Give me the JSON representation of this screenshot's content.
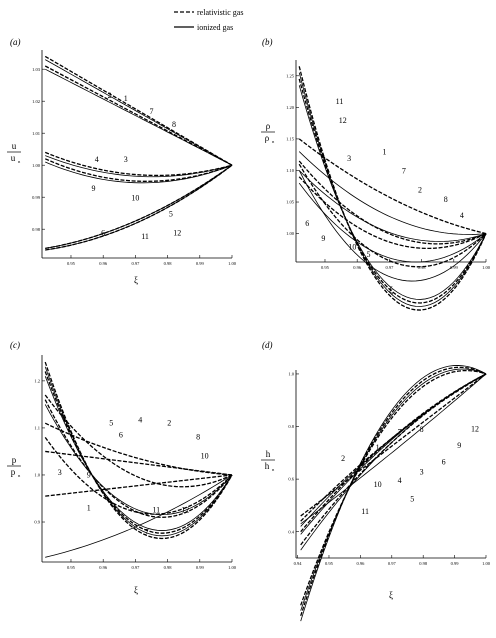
{
  "legend": {
    "dashed_label": "relativistic gas",
    "solid_label": "ionized gas",
    "dashed_style": "dashed",
    "solid_style": "solid"
  },
  "colors": {
    "line": "#000000",
    "background": "#ffffff"
  },
  "chart_data": [
    {
      "panel": "(a)",
      "type": "line",
      "xlabel": "ξ",
      "ylabel_num": "u",
      "ylabel_den": "u",
      "ylabel_sub": "n",
      "xlim": [
        0.941,
        1.0
      ],
      "ylim": [
        0.971,
        1.036
      ],
      "xticks": [
        0.95,
        0.96,
        0.97,
        0.98,
        0.99,
        1.0
      ],
      "xtick_labels": [
        "0.95",
        "0.96",
        "0.97",
        "0.98",
        "0.99",
        "1.00"
      ],
      "yticks": [
        0.98,
        0.99,
        1.0,
        1.01,
        1.02,
        1.03
      ],
      "ytick_labels": [
        "0.98",
        "0.99",
        "1.00",
        "1.01",
        "1.02",
        "1.03"
      ],
      "grid": false,
      "series": [
        {
          "name": "2",
          "style": "dashed",
          "x": [
            0.942,
            1.0
          ],
          "y": [
            1.034,
            1.0
          ],
          "bow": 0.0
        },
        {
          "name": "1",
          "style": "solid",
          "x": [
            0.942,
            1.0
          ],
          "y": [
            1.033,
            1.0
          ],
          "bow": 0.0
        },
        {
          "name": "7",
          "style": "dashed",
          "x": [
            0.942,
            1.0
          ],
          "y": [
            1.031,
            1.0
          ],
          "bow": 0.0
        },
        {
          "name": "8",
          "style": "solid",
          "x": [
            0.942,
            1.0
          ],
          "y": [
            1.03,
            1.0
          ],
          "bow": 0.0
        },
        {
          "name": "4",
          "style": "dashed",
          "x": [
            0.942,
            1.0
          ],
          "y": [
            1.004,
            1.0
          ],
          "bow": -0.005
        },
        {
          "name": "3",
          "style": "solid",
          "x": [
            0.942,
            1.0
          ],
          "y": [
            1.003,
            1.0
          ],
          "bow": -0.005
        },
        {
          "name": "9",
          "style": "dashed",
          "x": [
            0.942,
            1.0
          ],
          "y": [
            1.002,
            1.0
          ],
          "bow": -0.006
        },
        {
          "name": "10",
          "style": "solid",
          "x": [
            0.942,
            1.0
          ],
          "y": [
            1.001,
            1.0
          ],
          "bow": -0.006
        },
        {
          "name": "6",
          "style": "dashed",
          "x": [
            0.942,
            1.0
          ],
          "y": [
            0.974,
            1.0
          ],
          "bow": -0.004
        },
        {
          "name": "5",
          "style": "solid",
          "x": [
            0.942,
            1.0
          ],
          "y": [
            0.974,
            1.0
          ],
          "bow": -0.004
        },
        {
          "name": "11",
          "style": "dashed",
          "x": [
            0.942,
            1.0
          ],
          "y": [
            0.9735,
            1.0
          ],
          "bow": -0.0045
        },
        {
          "name": "12",
          "style": "solid",
          "x": [
            0.942,
            1.0
          ],
          "y": [
            0.9735,
            1.0
          ],
          "bow": -0.0045
        }
      ],
      "curve_labels": [
        {
          "text": "2",
          "x": 0.962,
          "y": 1.021
        },
        {
          "text": "1",
          "x": 0.967,
          "y": 1.02
        },
        {
          "text": "7",
          "x": 0.975,
          "y": 1.016
        },
        {
          "text": "8",
          "x": 0.982,
          "y": 1.012
        },
        {
          "text": "4",
          "x": 0.958,
          "y": 1.001
        },
        {
          "text": "3",
          "x": 0.967,
          "y": 1.001
        },
        {
          "text": "9",
          "x": 0.957,
          "y": 0.992
        },
        {
          "text": "10",
          "x": 0.97,
          "y": 0.989
        },
        {
          "text": "5",
          "x": 0.981,
          "y": 0.984
        },
        {
          "text": "6",
          "x": 0.96,
          "y": 0.978
        },
        {
          "text": "11",
          "x": 0.973,
          "y": 0.977
        },
        {
          "text": "12",
          "x": 0.983,
          "y": 0.978
        }
      ]
    },
    {
      "panel": "(b)",
      "type": "line",
      "xlabel": "ξ",
      "ylabel_num": "ρ",
      "ylabel_den": "ρ",
      "ylabel_sub": "n",
      "xlim": [
        0.941,
        1.0
      ],
      "ylim": [
        0.955,
        1.275
      ],
      "xticks": [
        0.95,
        0.96,
        0.97,
        0.98,
        0.99,
        1.0
      ],
      "xtick_labels": [
        "0.95",
        "0.96",
        "0.97",
        "0.98",
        "0.99",
        "1.00"
      ],
      "yticks": [
        1.0,
        1.05,
        1.1,
        1.15,
        1.2,
        1.25
      ],
      "ytick_labels": [
        "1.00",
        "1.05",
        "1.10",
        "1.15",
        "1.20",
        "1.25"
      ],
      "grid": false,
      "series": [
        {
          "name": "11",
          "style": "dashed",
          "x": [
            0.942,
            1.0
          ],
          "y": [
            1.265,
            1.0
          ],
          "bow": -0.235
        },
        {
          "name": "12",
          "style": "solid",
          "x": [
            0.942,
            1.0
          ],
          "y": [
            1.255,
            1.0
          ],
          "bow": -0.225
        },
        {
          "name": "10",
          "style": "dashed",
          "x": [
            0.942,
            1.0
          ],
          "y": [
            1.245,
            1.0
          ],
          "bow": -0.215
        },
        {
          "name": "5",
          "style": "solid",
          "x": [
            0.942,
            1.0
          ],
          "y": [
            1.235,
            1.0
          ],
          "bow": -0.205
        },
        {
          "name": "1",
          "style": "dashed",
          "x": [
            0.942,
            1.0
          ],
          "y": [
            1.15,
            1.0
          ],
          "bow": -0.02
        },
        {
          "name": "3",
          "style": "solid",
          "x": [
            0.942,
            1.0
          ],
          "y": [
            1.13,
            1.0
          ],
          "bow": -0.04
        },
        {
          "name": "7",
          "style": "dashed",
          "x": [
            0.942,
            1.0
          ],
          "y": [
            1.115,
            1.0
          ],
          "bow": -0.06
        },
        {
          "name": "2",
          "style": "solid",
          "x": [
            0.942,
            1.0
          ],
          "y": [
            1.1,
            1.0
          ],
          "bow": -0.05
        },
        {
          "name": "8",
          "style": "dashed",
          "x": [
            0.942,
            1.0
          ],
          "y": [
            1.09,
            1.0
          ],
          "bow": -0.06
        },
        {
          "name": "4",
          "style": "solid",
          "x": [
            0.942,
            1.0
          ],
          "y": [
            1.08,
            1.0
          ],
          "bow": -0.08
        },
        {
          "name": "6",
          "style": "dashed",
          "x": [
            0.942,
            1.0
          ],
          "y": [
            1.11,
            1.0
          ],
          "bow": -0.1
        },
        {
          "name": "9",
          "style": "solid",
          "x": [
            0.942,
            1.0
          ],
          "y": [
            1.1,
            1.0
          ],
          "bow": -0.12
        }
      ],
      "curve_labels": [
        {
          "text": "11",
          "x": 0.9545,
          "y": 1.205
        },
        {
          "text": "12",
          "x": 0.9555,
          "y": 1.175
        },
        {
          "text": "3",
          "x": 0.9575,
          "y": 1.115
        },
        {
          "text": "1",
          "x": 0.9685,
          "y": 1.125
        },
        {
          "text": "7",
          "x": 0.9745,
          "y": 1.095
        },
        {
          "text": "2",
          "x": 0.9795,
          "y": 1.065
        },
        {
          "text": "8",
          "x": 0.9875,
          "y": 1.05
        },
        {
          "text": "4",
          "x": 0.9925,
          "y": 1.025
        },
        {
          "text": "6",
          "x": 0.9445,
          "y": 1.012
        },
        {
          "text": "9",
          "x": 0.9495,
          "y": 0.988
        },
        {
          "text": "10",
          "x": 0.9585,
          "y": 0.975
        },
        {
          "text": "5",
          "x": 0.9635,
          "y": 0.963
        }
      ]
    },
    {
      "panel": "(c)",
      "type": "line",
      "xlabel": "ξ",
      "ylabel_num": "p",
      "ylabel_den": "p",
      "ylabel_sub": "n",
      "xlim": [
        0.941,
        1.0
      ],
      "ylim": [
        0.815,
        1.255
      ],
      "xticks": [
        0.95,
        0.96,
        0.97,
        0.98,
        0.99,
        1.0
      ],
      "xtick_labels": [
        "0.95",
        "0.96",
        "0.97",
        "0.98",
        "0.99",
        "1.00"
      ],
      "yticks": [
        0.9,
        1.0,
        1.1,
        1.2
      ],
      "ytick_labels": [
        "0.9",
        "1.0",
        "1.1",
        "1.2"
      ],
      "grid": false,
      "series": [
        {
          "name": "5",
          "style": "dashed",
          "x": [
            0.942,
            1.0
          ],
          "y": [
            1.24,
            1.0
          ],
          "bow": -0.24
        },
        {
          "name": "6",
          "style": "solid",
          "x": [
            0.942,
            1.0
          ],
          "y": [
            1.23,
            1.0
          ],
          "bow": -0.23
        },
        {
          "name": "4",
          "style": "dashed",
          "x": [
            0.942,
            1.0
          ],
          "y": [
            1.22,
            1.0
          ],
          "bow": -0.22
        },
        {
          "name": "9",
          "style": "solid",
          "x": [
            0.942,
            1.0
          ],
          "y": [
            1.21,
            1.0
          ],
          "bow": -0.21
        },
        {
          "name": "10",
          "style": "dashed",
          "x": [
            0.942,
            1.0
          ],
          "y": [
            1.16,
            1.0
          ],
          "bow": -0.16
        },
        {
          "name": "11",
          "style": "solid",
          "x": [
            0.942,
            1.0
          ],
          "y": [
            1.15,
            1.0
          ],
          "bow": -0.15
        },
        {
          "name": "12",
          "style": "dashed",
          "x": [
            0.942,
            1.0
          ],
          "y": [
            1.08,
            1.0
          ],
          "bow": -0.12
        },
        {
          "name": "2",
          "style": "dashed",
          "x": [
            0.942,
            1.0
          ],
          "y": [
            1.11,
            1.0
          ],
          "bow": -0.02
        },
        {
          "name": "8",
          "style": "dashed",
          "x": [
            0.942,
            1.0
          ],
          "y": [
            1.05,
            1.0
          ],
          "bow": 0.0
        },
        {
          "name": "3",
          "style": "dashed",
          "x": [
            0.942,
            1.0
          ],
          "y": [
            1.17,
            1.0
          ],
          "bow": -0.09
        },
        {
          "name": "1",
          "style": "dashed",
          "x": [
            0.942,
            1.0
          ],
          "y": [
            0.955,
            1.0
          ],
          "bow": 0.0
        },
        {
          "name": "7",
          "style": "solid",
          "x": [
            0.942,
            1.0
          ],
          "y": [
            0.825,
            1.0
          ],
          "bow": -0.02
        }
      ],
      "curve_labels": [
        {
          "text": "5",
          "x": 0.9625,
          "y": 1.105
        },
        {
          "text": "4",
          "x": 0.9715,
          "y": 1.112
        },
        {
          "text": "6",
          "x": 0.9655,
          "y": 1.08
        },
        {
          "text": "2",
          "x": 0.9805,
          "y": 1.105
        },
        {
          "text": "8",
          "x": 0.9895,
          "y": 1.075
        },
        {
          "text": "10",
          "x": 0.9915,
          "y": 1.035
        },
        {
          "text": "3",
          "x": 0.9465,
          "y": 1.0
        },
        {
          "text": "9",
          "x": 0.9555,
          "y": 0.995
        },
        {
          "text": "1",
          "x": 0.9555,
          "y": 0.925
        },
        {
          "text": "11",
          "x": 0.9765,
          "y": 0.92
        },
        {
          "text": "12",
          "x": 0.9855,
          "y": 0.92
        },
        {
          "text": "7",
          "x": 0.9735,
          "y": 0.873
        }
      ]
    },
    {
      "panel": "(d)",
      "type": "line",
      "xlabel": "ξ",
      "ylabel_num": "h",
      "ylabel_den": "h",
      "ylabel_sub": "n",
      "xlim": [
        0.9395,
        1.0
      ],
      "ylim": [
        0.3,
        1.015
      ],
      "xticks": [
        0.94,
        0.95,
        0.96,
        0.97,
        0.98,
        0.99,
        1.0
      ],
      "xtick_labels": [
        "0.94",
        "0.95",
        "0.96",
        "0.97",
        "0.98",
        "0.99",
        "1.00"
      ],
      "yticks": [
        0.4,
        0.6,
        0.8,
        1.0
      ],
      "ytick_labels": [
        "0.4",
        "0.6",
        "0.8",
        "1.0"
      ],
      "grid": false,
      "series": [
        {
          "name": "2",
          "style": "dashed",
          "x": [
            0.941,
            1.0
          ],
          "y": [
            0.44,
            1.0
          ],
          "bow": 0.04
        },
        {
          "name": "1",
          "style": "solid",
          "x": [
            0.941,
            1.0
          ],
          "y": [
            0.42,
            1.0
          ],
          "bow": 0.05
        },
        {
          "name": "7",
          "style": "dashed",
          "x": [
            0.941,
            1.0
          ],
          "y": [
            0.4,
            1.0
          ],
          "bow": 0.06
        },
        {
          "name": "8",
          "style": "solid",
          "x": [
            0.941,
            1.0
          ],
          "y": [
            0.39,
            1.0
          ],
          "bow": 0.06
        },
        {
          "name": "12",
          "style": "dashed",
          "x": [
            0.941,
            1.0
          ],
          "y": [
            0.46,
            1.0
          ],
          "bow": 0.0
        },
        {
          "name": "9",
          "style": "solid",
          "x": [
            0.941,
            1.0
          ],
          "y": [
            0.43,
            1.0
          ],
          "bow": -0.01
        },
        {
          "name": "3",
          "style": "dashed",
          "x": [
            0.941,
            1.0
          ],
          "y": [
            0.35,
            1.0
          ],
          "bow": 0.07
        },
        {
          "name": "6",
          "style": "solid",
          "x": [
            0.941,
            1.0
          ],
          "y": [
            0.33,
            1.0
          ],
          "bow": 0.08
        },
        {
          "name": "4",
          "style": "dashed",
          "x": [
            0.941,
            1.0
          ],
          "y": [
            0.12,
            1.0
          ],
          "bow": 0.28
        },
        {
          "name": "10",
          "style": "solid",
          "x": [
            0.941,
            1.0
          ],
          "y": [
            0.1,
            1.0
          ],
          "bow": 0.3
        },
        {
          "name": "5",
          "style": "dashed",
          "x": [
            0.941,
            1.0
          ],
          "y": [
            0.08,
            1.0
          ],
          "bow": 0.32
        },
        {
          "name": "11",
          "style": "solid",
          "x": [
            0.941,
            1.0
          ],
          "y": [
            0.06,
            1.0
          ],
          "bow": 0.34
        }
      ],
      "curve_labels": [
        {
          "text": "2",
          "x": 0.9545,
          "y": 0.668
        },
        {
          "text": "1",
          "x": 0.9655,
          "y": 0.71
        },
        {
          "text": "7",
          "x": 0.9725,
          "y": 0.77
        },
        {
          "text": "8",
          "x": 0.9795,
          "y": 0.78
        },
        {
          "text": "12",
          "x": 0.9965,
          "y": 0.782
        },
        {
          "text": "9",
          "x": 0.9915,
          "y": 0.718
        },
        {
          "text": "6",
          "x": 0.9865,
          "y": 0.655
        },
        {
          "text": "3",
          "x": 0.9795,
          "y": 0.617
        },
        {
          "text": "4",
          "x": 0.9725,
          "y": 0.585
        },
        {
          "text": "10",
          "x": 0.9655,
          "y": 0.57
        },
        {
          "text": "5",
          "x": 0.9765,
          "y": 0.515
        },
        {
          "text": "11",
          "x": 0.9615,
          "y": 0.468
        }
      ]
    }
  ]
}
